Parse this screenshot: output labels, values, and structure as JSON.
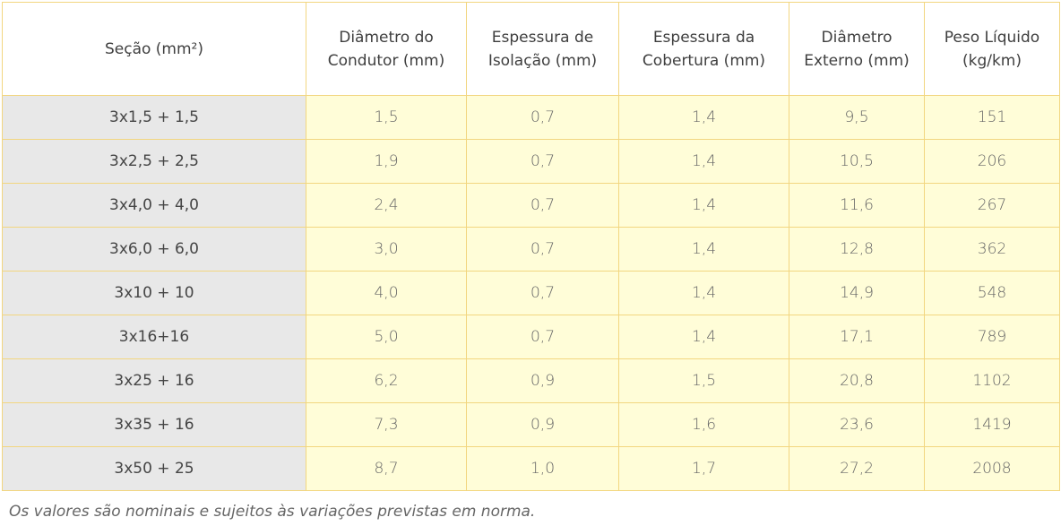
{
  "table": {
    "headers": [
      "Seção (mm²)",
      "Diâmetro do Condutor (mm)",
      "Espessura de Isolação (mm)",
      "Espessura da Cobertura (mm)",
      "Diâmetro Externo (mm)",
      "Peso Líquido (kg/km)"
    ],
    "rows": [
      [
        "3x1,5 + 1,5",
        "1,5",
        "0,7",
        "1,4",
        "9,5",
        "151"
      ],
      [
        "3x2,5 + 2,5",
        "1,9",
        "0,7",
        "1,4",
        "10,5",
        "206"
      ],
      [
        "3x4,0 + 4,0",
        "2,4",
        "0,7",
        "1,4",
        "11,6",
        "267"
      ],
      [
        "3x6,0 + 6,0",
        "3,0",
        "0,7",
        "1,4",
        "12,8",
        "362"
      ],
      [
        "3x10 + 10",
        "4,0",
        "0,7",
        "1,4",
        "14,9",
        "548"
      ],
      [
        "3x16+16",
        "5,0",
        "0,7",
        "1,4",
        "17,1",
        "789"
      ],
      [
        "3x25 + 16",
        "6,2",
        "0,9",
        "1,5",
        "20,8",
        "1102"
      ],
      [
        "3x35 + 16",
        "7,3",
        "0,9",
        "1,6",
        "23,6",
        "1419"
      ],
      [
        "3x50 + 25",
        "8,7",
        "1,0",
        "1,7",
        "27,2",
        "2008"
      ]
    ]
  },
  "footnote": "Os valores são nominais e sujeitos às variações previstas em norma.",
  "colors": {
    "border": "#f2d680",
    "data_cell_bg": "#fffdd8",
    "section_cell_bg": "#e8e8e8",
    "header_bg": "#ffffff"
  }
}
